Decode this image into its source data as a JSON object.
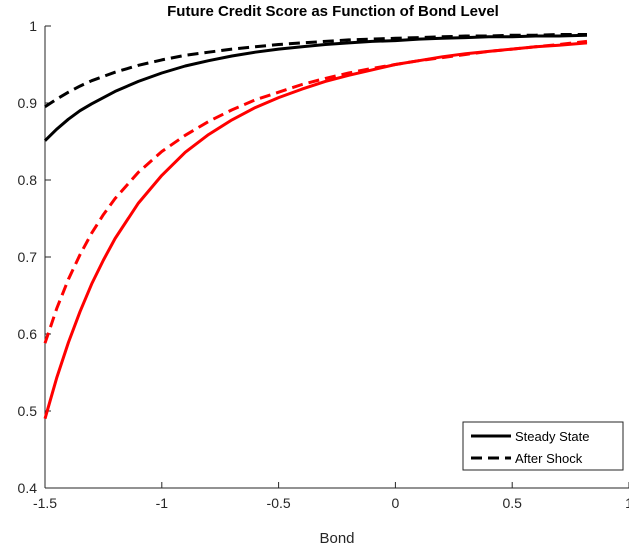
{
  "chart_data": {
    "type": "line",
    "title": "Future Credit Score as Function of Bond Level",
    "xlabel": "Bond",
    "ylabel": "",
    "xlim": [
      -1.5,
      1.0
    ],
    "ylim": [
      0.4,
      1.0
    ],
    "x_ticks": [
      -1.5,
      -1.0,
      -0.5,
      0.0,
      0.5,
      1.0
    ],
    "x_tick_labels": [
      "-1.5",
      "-1",
      "-0.5",
      "0",
      "0.5",
      "1"
    ],
    "y_ticks": [
      0.4,
      0.5,
      0.6,
      0.7,
      0.8,
      0.9,
      1.0
    ],
    "y_tick_labels": [
      "0.4",
      "0.5",
      "0.6",
      "0.7",
      "0.8",
      "0.9",
      "1"
    ],
    "grid": false,
    "legend_position": "bottom-right",
    "legend": [
      {
        "label": "Steady State",
        "style": "solid",
        "color": "#000000"
      },
      {
        "label": "After Shock",
        "style": "dashed",
        "color": "#000000"
      }
    ],
    "series": [
      {
        "color": "#000000",
        "style": "solid",
        "x": [
          -1.5,
          -1.45,
          -1.4,
          -1.35,
          -1.3,
          -1.2,
          -1.1,
          -1.0,
          -0.9,
          -0.8,
          -0.7,
          -0.6,
          -0.5,
          -0.4,
          -0.3,
          -0.2,
          -0.1,
          0.0,
          0.1,
          0.2,
          0.3,
          0.4,
          0.5,
          0.6,
          0.7,
          0.82
        ],
        "y": [
          0.851,
          0.866,
          0.879,
          0.89,
          0.899,
          0.915,
          0.928,
          0.939,
          0.948,
          0.955,
          0.961,
          0.966,
          0.97,
          0.973,
          0.976,
          0.978,
          0.98,
          0.981,
          0.983,
          0.984,
          0.985,
          0.986,
          0.986,
          0.987,
          0.987,
          0.988
        ]
      },
      {
        "color": "#000000",
        "style": "dashed",
        "x": [
          -1.5,
          -1.45,
          -1.4,
          -1.35,
          -1.3,
          -1.2,
          -1.1,
          -1.0,
          -0.9,
          -0.8,
          -0.7,
          -0.6,
          -0.5,
          -0.4,
          -0.3,
          -0.2,
          -0.1,
          0.0,
          0.1,
          0.2,
          0.3,
          0.4,
          0.5,
          0.6,
          0.7,
          0.82
        ],
        "y": [
          0.895,
          0.905,
          0.914,
          0.922,
          0.929,
          0.94,
          0.949,
          0.956,
          0.962,
          0.966,
          0.97,
          0.973,
          0.976,
          0.978,
          0.98,
          0.982,
          0.983,
          0.984,
          0.985,
          0.986,
          0.987,
          0.987,
          0.988,
          0.988,
          0.989,
          0.989
        ]
      },
      {
        "color": "#ff0000",
        "style": "solid",
        "x": [
          -1.5,
          -1.45,
          -1.4,
          -1.35,
          -1.3,
          -1.25,
          -1.2,
          -1.1,
          -1.0,
          -0.9,
          -0.8,
          -0.7,
          -0.6,
          -0.5,
          -0.4,
          -0.3,
          -0.2,
          -0.1,
          0.0,
          0.1,
          0.2,
          0.3,
          0.4,
          0.5,
          0.6,
          0.7,
          0.82
        ],
        "y": [
          0.49,
          0.543,
          0.589,
          0.629,
          0.665,
          0.696,
          0.724,
          0.77,
          0.806,
          0.836,
          0.859,
          0.878,
          0.894,
          0.907,
          0.918,
          0.928,
          0.936,
          0.943,
          0.95,
          0.955,
          0.96,
          0.964,
          0.967,
          0.97,
          0.973,
          0.975,
          0.978
        ]
      },
      {
        "color": "#ff0000",
        "style": "dashed",
        "x": [
          -1.5,
          -1.45,
          -1.4,
          -1.35,
          -1.3,
          -1.25,
          -1.2,
          -1.1,
          -1.0,
          -0.9,
          -0.8,
          -0.7,
          -0.6,
          -0.5,
          -0.4,
          -0.3,
          -0.2,
          -0.1,
          0.0,
          0.1,
          0.2,
          0.3,
          0.4,
          0.5,
          0.6,
          0.7,
          0.82
        ],
        "y": [
          0.588,
          0.633,
          0.671,
          0.703,
          0.731,
          0.755,
          0.776,
          0.81,
          0.837,
          0.858,
          0.876,
          0.891,
          0.904,
          0.914,
          0.924,
          0.932,
          0.939,
          0.945,
          0.95,
          0.955,
          0.959,
          0.963,
          0.967,
          0.97,
          0.973,
          0.976,
          0.98
        ]
      }
    ]
  }
}
